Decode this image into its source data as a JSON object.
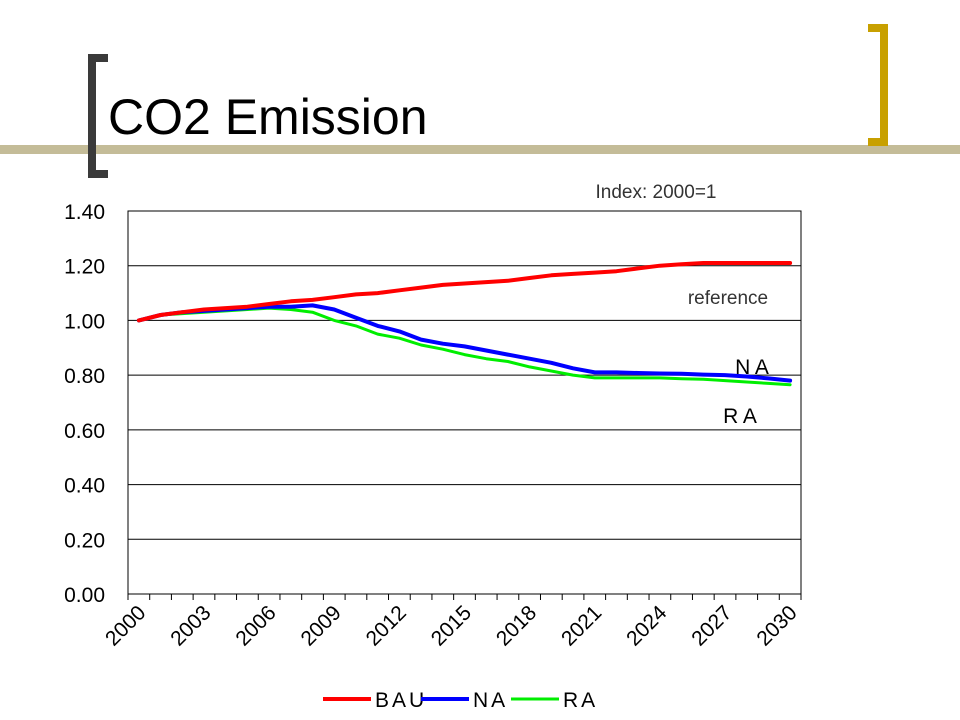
{
  "slide": {
    "title": "CO2 Emission",
    "colors": {
      "accent_bar": "#c4bc98",
      "bracket_dark": "#3a3a3a",
      "bracket_gold": "#c8a000"
    }
  },
  "chart_data": {
    "type": "line",
    "subtitle": "Index: 2000=1",
    "xlabel": "",
    "ylabel": "",
    "ylim": [
      0,
      1.4
    ],
    "yticks": [
      "0.00",
      "0.20",
      "0.40",
      "0.60",
      "0.80",
      "1.00",
      "1.20",
      "1.40"
    ],
    "x_tick_labels": [
      "2000",
      "2003",
      "2006",
      "2009",
      "2012",
      "2015",
      "2018",
      "2021",
      "2024",
      "2027",
      "2030"
    ],
    "x": [
      2000,
      2001,
      2002,
      2003,
      2004,
      2005,
      2006,
      2007,
      2008,
      2009,
      2010,
      2011,
      2012,
      2013,
      2014,
      2015,
      2016,
      2017,
      2018,
      2019,
      2020,
      2021,
      2022,
      2023,
      2024,
      2025,
      2026,
      2027,
      2028,
      2029,
      2030
    ],
    "grid": true,
    "legend_position": "bottom",
    "annotations": {
      "reference": "reference",
      "na": "N A",
      "ra": "R A"
    },
    "series": [
      {
        "name": "BAU",
        "color": "#ff0000",
        "values": [
          1.0,
          1.02,
          1.03,
          1.04,
          1.045,
          1.05,
          1.06,
          1.07,
          1.075,
          1.085,
          1.095,
          1.1,
          1.11,
          1.12,
          1.13,
          1.135,
          1.14,
          1.145,
          1.155,
          1.165,
          1.17,
          1.175,
          1.18,
          1.19,
          1.2,
          1.205,
          1.21,
          1.21,
          1.21,
          1.21,
          1.21
        ]
      },
      {
        "name": "NA",
        "color": "#0000ff",
        "values": [
          1.0,
          1.02,
          1.03,
          1.035,
          1.04,
          1.045,
          1.05,
          1.05,
          1.055,
          1.04,
          1.01,
          0.98,
          0.96,
          0.93,
          0.915,
          0.905,
          0.89,
          0.875,
          0.86,
          0.845,
          0.825,
          0.81,
          0.81,
          0.808,
          0.806,
          0.805,
          0.802,
          0.8,
          0.795,
          0.788,
          0.78
        ]
      },
      {
        "name": "RA",
        "color": "#00ee00",
        "values": [
          1.0,
          1.02,
          1.025,
          1.03,
          1.035,
          1.04,
          1.045,
          1.04,
          1.03,
          1.0,
          0.98,
          0.95,
          0.935,
          0.91,
          0.895,
          0.875,
          0.86,
          0.85,
          0.83,
          0.815,
          0.8,
          0.79,
          0.79,
          0.79,
          0.79,
          0.787,
          0.785,
          0.78,
          0.775,
          0.77,
          0.765
        ]
      }
    ]
  }
}
